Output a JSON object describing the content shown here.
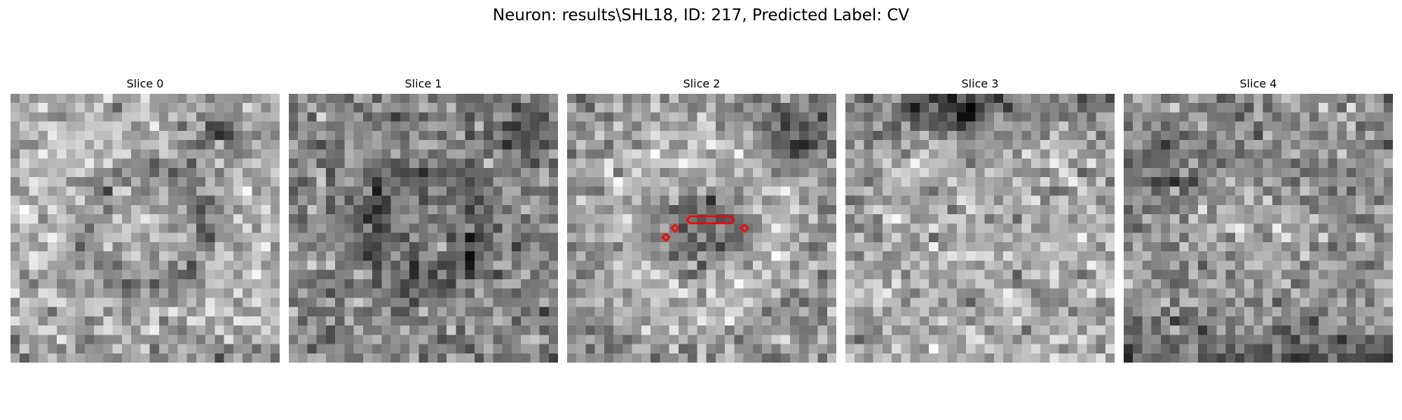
{
  "figure": {
    "title": "Neuron: results\\SHL18, ID: 217, Predicted Label: CV"
  },
  "slices": [
    {
      "title": "Slice 0",
      "pattern": "ring-bright-left-dark-topright",
      "seed": 11
    },
    {
      "title": "Slice 1",
      "pattern": "dark-ring-center",
      "seed": 23
    },
    {
      "title": "Slice 2",
      "pattern": "bright-ring-dark-center",
      "seed": 37
    },
    {
      "title": "Slice 3",
      "pattern": "bright-lower-dark-top",
      "seed": 41
    },
    {
      "title": "Slice 4",
      "pattern": "noisy-dark-bottom",
      "seed": 59
    }
  ],
  "colors": {
    "contour": "#ff0000"
  },
  "grid_size": 29
}
